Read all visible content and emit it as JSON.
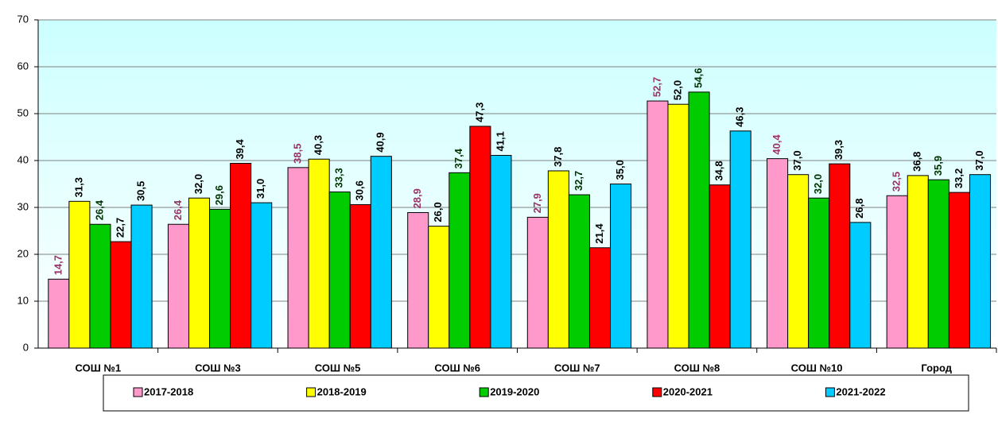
{
  "chart_data": {
    "type": "bar",
    "categories": [
      "СОШ №1",
      "СОШ №3",
      "СОШ №5",
      "СОШ №6",
      "СОШ №7",
      "СОШ №8",
      "СОШ №10",
      "Город"
    ],
    "series": [
      {
        "name": "2017-2018",
        "color": "#ff99cc",
        "label_color": "#993366",
        "values": [
          14.7,
          26.4,
          38.5,
          28.9,
          27.9,
          52.7,
          40.4,
          32.5
        ],
        "value_labels": [
          "14,7",
          "26,4",
          "38,5",
          "28,9",
          "27,9",
          "52,7",
          "40,4",
          "32,5"
        ]
      },
      {
        "name": "2018-2019",
        "color": "#ffff00",
        "label_color": "#000000",
        "values": [
          31.3,
          32.0,
          40.3,
          26.0,
          37.8,
          52.0,
          37.0,
          36.8
        ],
        "value_labels": [
          "31,3",
          "32,0",
          "40,3",
          "26,0",
          "37,8",
          "52,0",
          "37,0",
          "36,8"
        ]
      },
      {
        "name": "2019-2020",
        "color": "#00cc00",
        "label_color": "#003300",
        "values": [
          26.4,
          29.6,
          33.3,
          37.4,
          32.7,
          54.6,
          32.0,
          35.9
        ],
        "value_labels": [
          "26,4",
          "29,6",
          "33,3",
          "37,4",
          "32,7",
          "54,6",
          "32,0",
          "35,9"
        ]
      },
      {
        "name": "2020-2021",
        "color": "#ff0000",
        "label_color": "#000000",
        "values": [
          22.7,
          39.4,
          30.6,
          47.3,
          21.4,
          34.8,
          39.3,
          33.2
        ],
        "value_labels": [
          "22,7",
          "39,4",
          "30,6",
          "47,3",
          "21,4",
          "34,8",
          "39,3",
          "33,2"
        ]
      },
      {
        "name": "2021-2022",
        "color": "#00ccff",
        "label_color": "#000000",
        "values": [
          30.5,
          31.0,
          40.9,
          41.1,
          35.0,
          46.3,
          26.8,
          37.0
        ],
        "value_labels": [
          "30,5",
          "31,0",
          "40,9",
          "41,1",
          "35,0",
          "46,3",
          "26,8",
          "37,0"
        ]
      }
    ],
    "ylim": [
      0,
      70
    ],
    "yticks": [
      0,
      10,
      20,
      30,
      40,
      50,
      60,
      70
    ],
    "grid": true,
    "legend": "bottom"
  }
}
